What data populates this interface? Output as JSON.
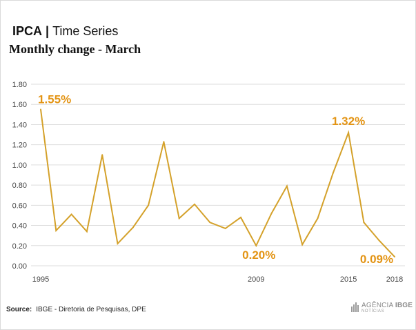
{
  "header": {
    "title_bold": "IPCA",
    "separator": "|",
    "title_rest": "Time Series",
    "subtitle": "Monthly change - March"
  },
  "footer": {
    "source_label": "Source:",
    "source_text": "IBGE - Diretoria de Pesquisas, DPE",
    "logo_main": "AGÊNCIA",
    "logo_bold": "IBGE",
    "logo_sub": "NOTÍCIAS"
  },
  "colors": {
    "line": "#d4a12a",
    "annotation": "#e39414",
    "grid": "#dddddd"
  },
  "chart_data": {
    "type": "line",
    "title": "Monthly change - March",
    "x": [
      1995,
      1996,
      1997,
      1998,
      1999,
      2000,
      2001,
      2002,
      2003,
      2004,
      2005,
      2006,
      2007,
      2008,
      2009,
      2010,
      2011,
      2012,
      2013,
      2014,
      2015,
      2016,
      2017,
      2018
    ],
    "series": [
      {
        "values": [
          1.55,
          0.35,
          0.51,
          0.34,
          1.1,
          0.22,
          0.38,
          0.6,
          1.23,
          0.47,
          0.61,
          0.43,
          0.37,
          0.48,
          0.2,
          0.52,
          0.79,
          0.21,
          0.47,
          0.92,
          1.32,
          0.43,
          0.25,
          0.09
        ]
      }
    ],
    "y_ticks": [
      "0.00",
      "0.20",
      "0.40",
      "0.60",
      "0.80",
      "1.00",
      "1.20",
      "1.40",
      "1.60",
      "1.80"
    ],
    "x_tick_labels": [
      "1995",
      "2009",
      "2015",
      "2018"
    ],
    "ylim": [
      0,
      1.8
    ],
    "grid": "horizontal",
    "annotations": [
      {
        "x": 1995,
        "y": 1.55,
        "text": "1.55%"
      },
      {
        "x": 2009,
        "y": 0.2,
        "text": "0.20%"
      },
      {
        "x": 2015,
        "y": 1.32,
        "text": "1.32%"
      },
      {
        "x": 2018,
        "y": 0.09,
        "text": "0.09%"
      }
    ]
  }
}
